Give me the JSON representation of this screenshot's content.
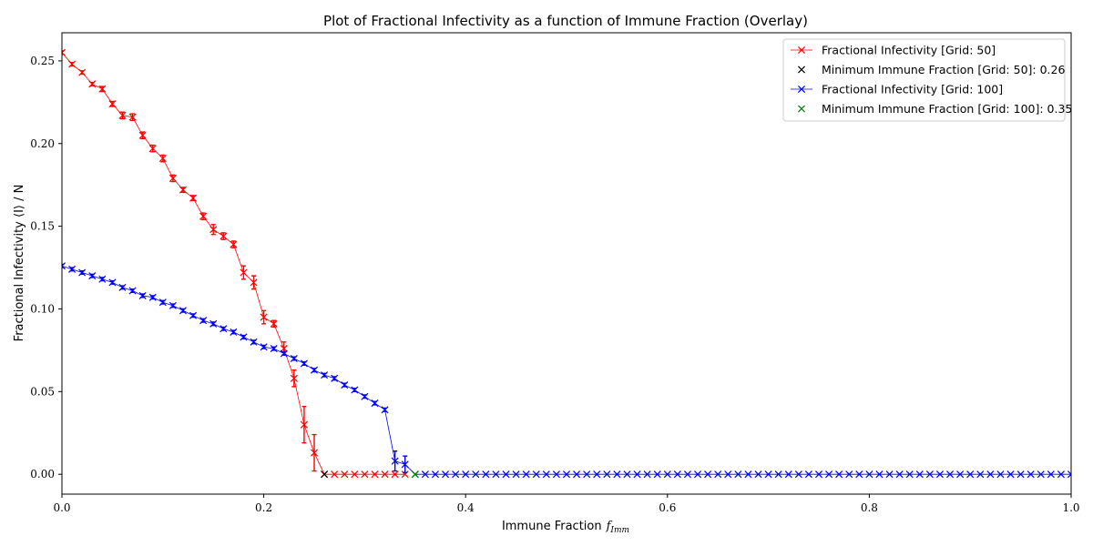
{
  "chart_data": {
    "type": "line",
    "title": "Plot of Fractional Infectivity as a function of Immune Fraction (Overlay)",
    "xlabel": "Immune Fraction",
    "xlabel_math": "f",
    "xlabel_math_sub": "Imm",
    "ylabel": "Fractional Infectivity ⟨I⟩ / N",
    "xlim": [
      0,
      1
    ],
    "ylim": [
      -0.012,
      0.267
    ],
    "xticks": [
      0.0,
      0.2,
      0.4,
      0.6,
      0.8,
      1.0
    ],
    "xtick_labels": [
      "0.0",
      "0.2",
      "0.4",
      "0.6",
      "0.8",
      "1.0"
    ],
    "yticks": [
      0.0,
      0.05,
      0.1,
      0.15,
      0.2,
      0.25
    ],
    "ytick_labels": [
      "0.00",
      "0.05",
      "0.10",
      "0.15",
      "0.20",
      "0.25"
    ],
    "grid": false,
    "legend_position": "top-right",
    "series": [
      {
        "name": "Fractional Infectivity [Grid: 50]",
        "color": "#ff0000",
        "marker": "x",
        "x": [
          0.0,
          0.01,
          0.02,
          0.03,
          0.04,
          0.05,
          0.06,
          0.07,
          0.08,
          0.09,
          0.1,
          0.11,
          0.12,
          0.13,
          0.14,
          0.15,
          0.16,
          0.17,
          0.18,
          0.19,
          0.2,
          0.21,
          0.22,
          0.23,
          0.24,
          0.25,
          0.26,
          0.27,
          0.28,
          0.29,
          0.3,
          0.31,
          0.32,
          0.33,
          0.34
        ],
        "y": [
          0.255,
          0.248,
          0.243,
          0.236,
          0.233,
          0.224,
          0.217,
          0.216,
          0.205,
          0.197,
          0.191,
          0.179,
          0.172,
          0.167,
          0.156,
          0.148,
          0.144,
          0.139,
          0.122,
          0.116,
          0.095,
          0.091,
          0.076,
          0.058,
          0.03,
          0.013,
          0.0,
          0.0,
          0.0,
          0.0,
          0.0,
          0.0,
          0.0,
          0.0,
          0.0
        ],
        "yerr": [
          0.001,
          0.001,
          0.001,
          0.001,
          0.0015,
          0.0015,
          0.002,
          0.002,
          0.002,
          0.002,
          0.002,
          0.002,
          0.0015,
          0.0015,
          0.002,
          0.003,
          0.002,
          0.002,
          0.004,
          0.004,
          0.004,
          0.002,
          0.004,
          0.005,
          0.011,
          0.011,
          0,
          0,
          0,
          0,
          0,
          0,
          0,
          0,
          0
        ]
      },
      {
        "name": "Minimum Immune Fraction [Grid: 50]: 0.26",
        "color": "#000000",
        "marker": "x",
        "scatter": true,
        "x": [
          0.26
        ],
        "y": [
          0.0
        ]
      },
      {
        "name": "Fractional Infectivity [Grid: 100]",
        "color": "#0000ff",
        "marker": "x",
        "x_start": 0.0,
        "x_end": 1.0,
        "x_step": 0.01,
        "y_head": [
          0.126,
          0.124,
          0.122,
          0.12,
          0.118,
          0.116,
          0.113,
          0.111,
          0.108,
          0.107,
          0.104,
          0.102,
          0.099,
          0.096,
          0.093,
          0.091,
          0.088,
          0.086,
          0.083,
          0.08,
          0.077,
          0.076,
          0.073,
          0.07,
          0.067,
          0.063,
          0.06,
          0.058,
          0.054,
          0.051,
          0.047,
          0.043,
          0.039,
          0.008,
          0.006
        ],
        "y_tail_value": 0.0,
        "yerr_head": [
          0.001,
          0.001,
          0.001,
          0.001,
          0.001,
          0.001,
          0.001,
          0.001,
          0.001,
          0.001,
          0.001,
          0.001,
          0.001,
          0.001,
          0.001,
          0.001,
          0.001,
          0.001,
          0.001,
          0.001,
          0.001,
          0.001,
          0.001,
          0.001,
          0.001,
          0.001,
          0.001,
          0.001,
          0.001,
          0.001,
          0.001,
          0.001,
          0.001,
          0.006,
          0.005
        ]
      },
      {
        "name": "Minimum Immune Fraction [Grid: 100]: 0.35",
        "color": "#008000",
        "marker": "x",
        "scatter": true,
        "x": [
          0.35
        ],
        "y": [
          0.0
        ]
      }
    ]
  }
}
